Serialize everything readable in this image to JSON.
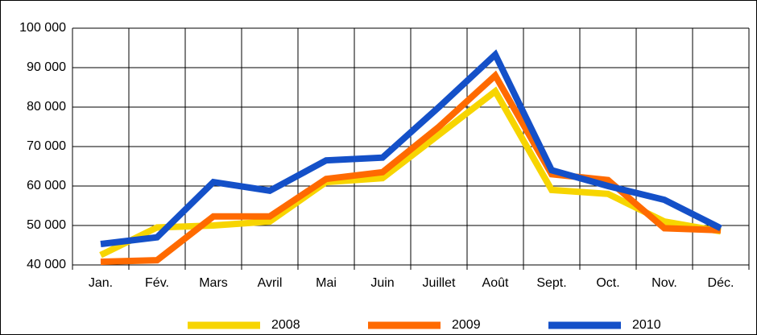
{
  "chart_data": {
    "type": "line",
    "categories": [
      "Jan.",
      "Fév.",
      "Mars",
      "Avril",
      "Mai",
      "Juin",
      "Juillet",
      "Août",
      "Sept.",
      "Oct.",
      "Nov.",
      "Déc."
    ],
    "series": [
      {
        "name": "2008",
        "color": "#f7d500",
        "values": [
          42500,
          49500,
          50000,
          51000,
          61000,
          62000,
          73000,
          84000,
          59000,
          58000,
          51000,
          48500
        ]
      },
      {
        "name": "2009",
        "color": "#ff6a00",
        "values": [
          40800,
          41200,
          52300,
          52300,
          61800,
          63500,
          75000,
          88000,
          63000,
          61500,
          49300,
          48800
        ]
      },
      {
        "name": "2010",
        "color": "#1450c8",
        "values": [
          45300,
          47000,
          61000,
          58800,
          66500,
          67200,
          80000,
          93300,
          64000,
          60000,
          56500,
          49300
        ]
      }
    ],
    "ylim": [
      40000,
      100000
    ],
    "yticks": [
      {
        "value": 40000,
        "label": "40 000"
      },
      {
        "value": 50000,
        "label": "50 000"
      },
      {
        "value": 60000,
        "label": "60 000"
      },
      {
        "value": 70000,
        "label": "70 000"
      },
      {
        "value": 80000,
        "label": "80 000"
      },
      {
        "value": 90000,
        "label": "90 000"
      },
      {
        "value": 100000,
        "label": "100 000"
      }
    ],
    "grid": true,
    "legend": "bottom"
  }
}
